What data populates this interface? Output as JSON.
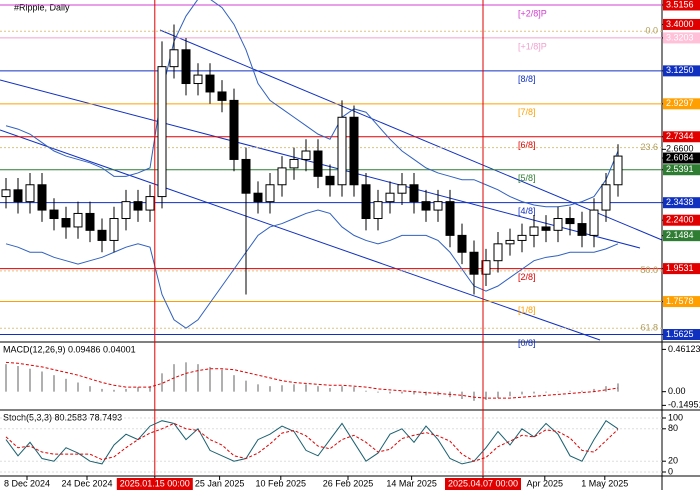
{
  "chart_data": [
    {
      "type": "candlestick",
      "title": "#Ripple, Daily",
      "open": [
        2.38,
        2.42,
        2.35,
        2.45,
        2.3,
        2.25,
        2.2,
        2.28,
        2.18,
        2.12,
        2.25,
        2.35,
        2.3,
        2.38,
        3.15,
        3.25,
        3.05,
        3.1,
        3.0,
        2.95,
        2.6,
        2.4,
        2.35,
        2.45,
        2.55,
        2.6,
        2.65,
        2.5,
        2.45,
        2.85,
        2.45,
        2.25,
        2.35,
        2.4,
        2.45,
        2.35,
        2.3,
        2.35,
        2.15,
        2.05,
        1.92,
        2.0,
        2.1,
        2.12,
        2.15,
        2.2,
        2.18,
        2.25,
        2.22,
        2.15,
        2.3,
        2.45
      ],
      "high": [
        2.49,
        2.49,
        2.52,
        2.52,
        2.37,
        2.32,
        2.35,
        2.35,
        2.25,
        2.32,
        2.42,
        2.42,
        2.45,
        3.3,
        3.4,
        3.32,
        3.17,
        3.17,
        3.07,
        3.02,
        2.67,
        2.47,
        2.52,
        2.62,
        2.67,
        2.72,
        2.72,
        2.57,
        2.95,
        2.92,
        2.52,
        2.42,
        2.47,
        2.52,
        2.52,
        2.42,
        2.42,
        2.42,
        2.22,
        2.12,
        2.07,
        2.17,
        2.19,
        2.22,
        2.27,
        2.27,
        2.32,
        2.32,
        2.29,
        2.37,
        2.52,
        2.69
      ],
      "low": [
        2.31,
        2.28,
        2.28,
        2.23,
        2.18,
        2.13,
        2.13,
        2.11,
        2.05,
        2.05,
        2.18,
        2.23,
        2.23,
        2.31,
        3.08,
        2.98,
        2.98,
        2.93,
        2.88,
        2.53,
        1.8,
        2.28,
        2.28,
        2.38,
        2.48,
        2.53,
        2.43,
        2.38,
        2.38,
        2.38,
        2.18,
        2.18,
        2.28,
        2.33,
        2.28,
        2.23,
        2.23,
        2.08,
        1.98,
        1.8,
        1.85,
        1.93,
        2.03,
        2.05,
        2.08,
        2.11,
        2.11,
        2.15,
        2.08,
        2.08,
        2.23,
        2.38
      ],
      "close": [
        2.42,
        2.35,
        2.45,
        2.3,
        2.25,
        2.2,
        2.28,
        2.18,
        2.12,
        2.25,
        2.35,
        2.3,
        2.38,
        3.15,
        3.25,
        3.05,
        3.1,
        3.0,
        2.95,
        2.6,
        2.4,
        2.35,
        2.45,
        2.55,
        2.6,
        2.65,
        2.5,
        2.45,
        2.85,
        2.45,
        2.25,
        2.35,
        2.4,
        2.45,
        2.35,
        2.3,
        2.35,
        2.15,
        2.05,
        1.92,
        2.0,
        2.1,
        2.12,
        2.15,
        2.2,
        2.18,
        2.25,
        2.22,
        2.15,
        2.3,
        2.45,
        2.62
      ],
      "band_upper": [
        2.8,
        2.78,
        2.75,
        2.7,
        2.65,
        2.62,
        2.6,
        2.58,
        2.55,
        2.5,
        2.5,
        2.52,
        2.55,
        3.0,
        3.3,
        3.45,
        3.55,
        3.55,
        3.5,
        3.4,
        3.25,
        3.05,
        2.95,
        2.9,
        2.85,
        2.8,
        2.75,
        2.72,
        2.85,
        2.9,
        2.88,
        2.8,
        2.72,
        2.65,
        2.6,
        2.55,
        2.52,
        2.5,
        2.48,
        2.48,
        2.45,
        2.42,
        2.38,
        2.35,
        2.33,
        2.32,
        2.32,
        2.33,
        2.35,
        2.38,
        2.48,
        2.65
      ],
      "band_lower": [
        2.1,
        2.08,
        2.05,
        2.05,
        2.02,
        2.0,
        1.98,
        2.0,
        2.02,
        2.05,
        2.08,
        2.1,
        2.08,
        1.8,
        1.65,
        1.6,
        1.65,
        1.75,
        1.85,
        1.95,
        2.05,
        2.15,
        2.2,
        2.22,
        2.25,
        2.28,
        2.3,
        2.28,
        2.2,
        2.15,
        2.12,
        2.1,
        2.12,
        2.15,
        2.15,
        2.15,
        2.12,
        2.05,
        1.95,
        1.85,
        1.82,
        1.85,
        1.9,
        1.95,
        2.0,
        2.02,
        2.03,
        2.05,
        2.05,
        2.05,
        2.07,
        2.1
      ],
      "band_color": "#3060c0",
      "up_color": "#000000",
      "down_color": "#000000",
      "ylim": [
        1.53,
        3.545
      ],
      "yticks": [
        {
          "value": 3.5156,
          "label": "3.5156"
        },
        {
          "value": 3.4,
          "label": "3.4000"
        },
        {
          "value": 3.3203,
          "label": "3.3203"
        },
        {
          "value": 3.125,
          "label": "3.1250"
        },
        {
          "value": 2.9297,
          "label": "2.9297"
        },
        {
          "value": 2.7344,
          "label": "2.7344"
        },
        {
          "value": 2.66,
          "label": "2.6600"
        },
        {
          "value": 2.6084,
          "label": "2.6084"
        },
        {
          "value": 2.5391,
          "label": "2.5391"
        },
        {
          "value": 2.3438,
          "label": "2.3438"
        },
        {
          "value": 2.24,
          "label": "2.2400"
        },
        {
          "value": 2.1484,
          "label": "2.1484"
        },
        {
          "value": 1.9531,
          "label": "1.9531"
        },
        {
          "value": 1.7578,
          "label": "1.7578"
        },
        {
          "value": 1.5625,
          "label": "1.5625"
        }
      ],
      "ytick_colors": [
        "#e00000",
        "#e00000",
        "#ffc0d8",
        "#1030c0",
        "#ffa000",
        "#e00000",
        "none",
        "#000000",
        "#2e7d32",
        "#1030c0",
        "#e00000",
        "#2e7d32",
        "#e00000",
        "#ffa000",
        "#1030c0"
      ],
      "murray": [
        {
          "label": "[+2/8]P",
          "value": 3.5156,
          "color": "#d040d0"
        },
        {
          "label": "[+1/8]P",
          "value": 3.3203,
          "color": "#f0a0d0"
        },
        {
          "label": "[8/8]",
          "value": 3.125,
          "color": "#1030c0"
        },
        {
          "label": "[7/8]",
          "value": 2.9297,
          "color": "#ffa000"
        },
        {
          "label": "[6/8]",
          "value": 2.7344,
          "color": "#e00000"
        },
        {
          "label": "[5/8]",
          "value": 2.5391,
          "color": "#2e7d32"
        },
        {
          "label": "[4/8]",
          "value": 2.3438,
          "color": "#1030c0"
        },
        {
          "label": "[2/8]",
          "value": 1.9531,
          "color": "#e00000"
        },
        {
          "label": "[1/8]",
          "value": 1.7578,
          "color": "#ffa000"
        },
        {
          "label": "[0/8]",
          "value": 1.5625,
          "color": "#1030c0"
        }
      ],
      "fib": [
        {
          "label": "0.0",
          "value": 3.36
        },
        {
          "label": "23.6",
          "value": 2.67
        },
        {
          "label": "50.0",
          "value": 1.94
        },
        {
          "label": "61.8",
          "value": 1.6
        }
      ],
      "xticks": [
        {
          "value": 1.75,
          "label": "8 Dec 2024"
        },
        {
          "value": 6.75,
          "label": "24 Dec 2024"
        },
        {
          "value": 12.4,
          "label": "2025.01.15 00:00"
        },
        {
          "value": 17.8,
          "label": "25 Jan 2025"
        },
        {
          "value": 22.9,
          "label": "10 Feb 2025"
        },
        {
          "value": 28.5,
          "label": "26 Feb 2025"
        },
        {
          "value": 33.8,
          "label": "14 Mar 2025"
        },
        {
          "value": 39.75,
          "label": "2025.04.07 00:00"
        },
        {
          "value": 44.9,
          "label": "Apr 2025"
        },
        {
          "value": 49.9,
          "label": "1 May 2025"
        }
      ],
      "highlighted_xticks": [
        2,
        7
      ]
    },
    {
      "type": "macd",
      "title": "MACD(12,26,9) 0.09486 0.04001",
      "values": [
        0.3,
        0.28,
        0.25,
        0.22,
        0.18,
        0.14,
        0.1,
        0.06,
        0.03,
        0.02,
        0.03,
        0.05,
        0.06,
        0.2,
        0.3,
        0.32,
        0.3,
        0.27,
        0.24,
        0.18,
        0.12,
        0.08,
        0.06,
        0.07,
        0.08,
        0.08,
        0.06,
        0.04,
        0.06,
        0.05,
        0.01,
        -0.01,
        -0.02,
        -0.02,
        -0.03,
        -0.04,
        -0.04,
        -0.06,
        -0.08,
        -0.1,
        -0.09,
        -0.07,
        -0.05,
        -0.03,
        -0.02,
        -0.01,
        0.0,
        0.01,
        0.01,
        0.03,
        0.06,
        0.09
      ],
      "signal": [
        0.32,
        0.31,
        0.29,
        0.27,
        0.24,
        0.21,
        0.18,
        0.14,
        0.1,
        0.07,
        0.05,
        0.05,
        0.05,
        0.09,
        0.15,
        0.2,
        0.23,
        0.25,
        0.25,
        0.24,
        0.21,
        0.18,
        0.15,
        0.12,
        0.1,
        0.09,
        0.08,
        0.07,
        0.07,
        0.06,
        0.05,
        0.03,
        0.02,
        0.01,
        0.0,
        -0.01,
        -0.02,
        -0.03,
        -0.04,
        -0.06,
        -0.07,
        -0.07,
        -0.07,
        -0.06,
        -0.05,
        -0.04,
        -0.03,
        -0.02,
        -0.01,
        0.0,
        0.02,
        0.04
      ],
      "color": "#b0b0b0",
      "signal_color": "#e00000",
      "ylim": [
        -0.2,
        0.52
      ],
      "yticks": [
        0.46123,
        {
          "value": 0,
          "label": "0.00"
        },
        -0.14951
      ]
    },
    {
      "type": "stochastic",
      "title": "Stoch(5,3,3) 80.2583 78.7493",
      "values": [
        60,
        30,
        55,
        25,
        20,
        45,
        35,
        20,
        15,
        50,
        70,
        60,
        85,
        95,
        90,
        60,
        80,
        40,
        30,
        20,
        25,
        60,
        70,
        85,
        75,
        40,
        30,
        60,
        90,
        55,
        20,
        35,
        70,
        80,
        55,
        85,
        60,
        25,
        15,
        20,
        45,
        75,
        50,
        80,
        65,
        90,
        70,
        30,
        20,
        60,
        95,
        80
      ],
      "signal": [
        65,
        45,
        48,
        37,
        33,
        33,
        33,
        33,
        23,
        28,
        45,
        60,
        72,
        80,
        90,
        80,
        77,
        60,
        50,
        30,
        25,
        35,
        52,
        72,
        77,
        67,
        48,
        43,
        60,
        68,
        55,
        37,
        42,
        62,
        68,
        73,
        67,
        57,
        33,
        20,
        27,
        47,
        57,
        68,
        65,
        78,
        75,
        63,
        40,
        37,
        58,
        79
      ],
      "color": "#1a6070",
      "signal_color": "#e00000",
      "ylim": [
        0,
        100
      ],
      "yticks": [
        100,
        80,
        20,
        0
      ]
    }
  ]
}
